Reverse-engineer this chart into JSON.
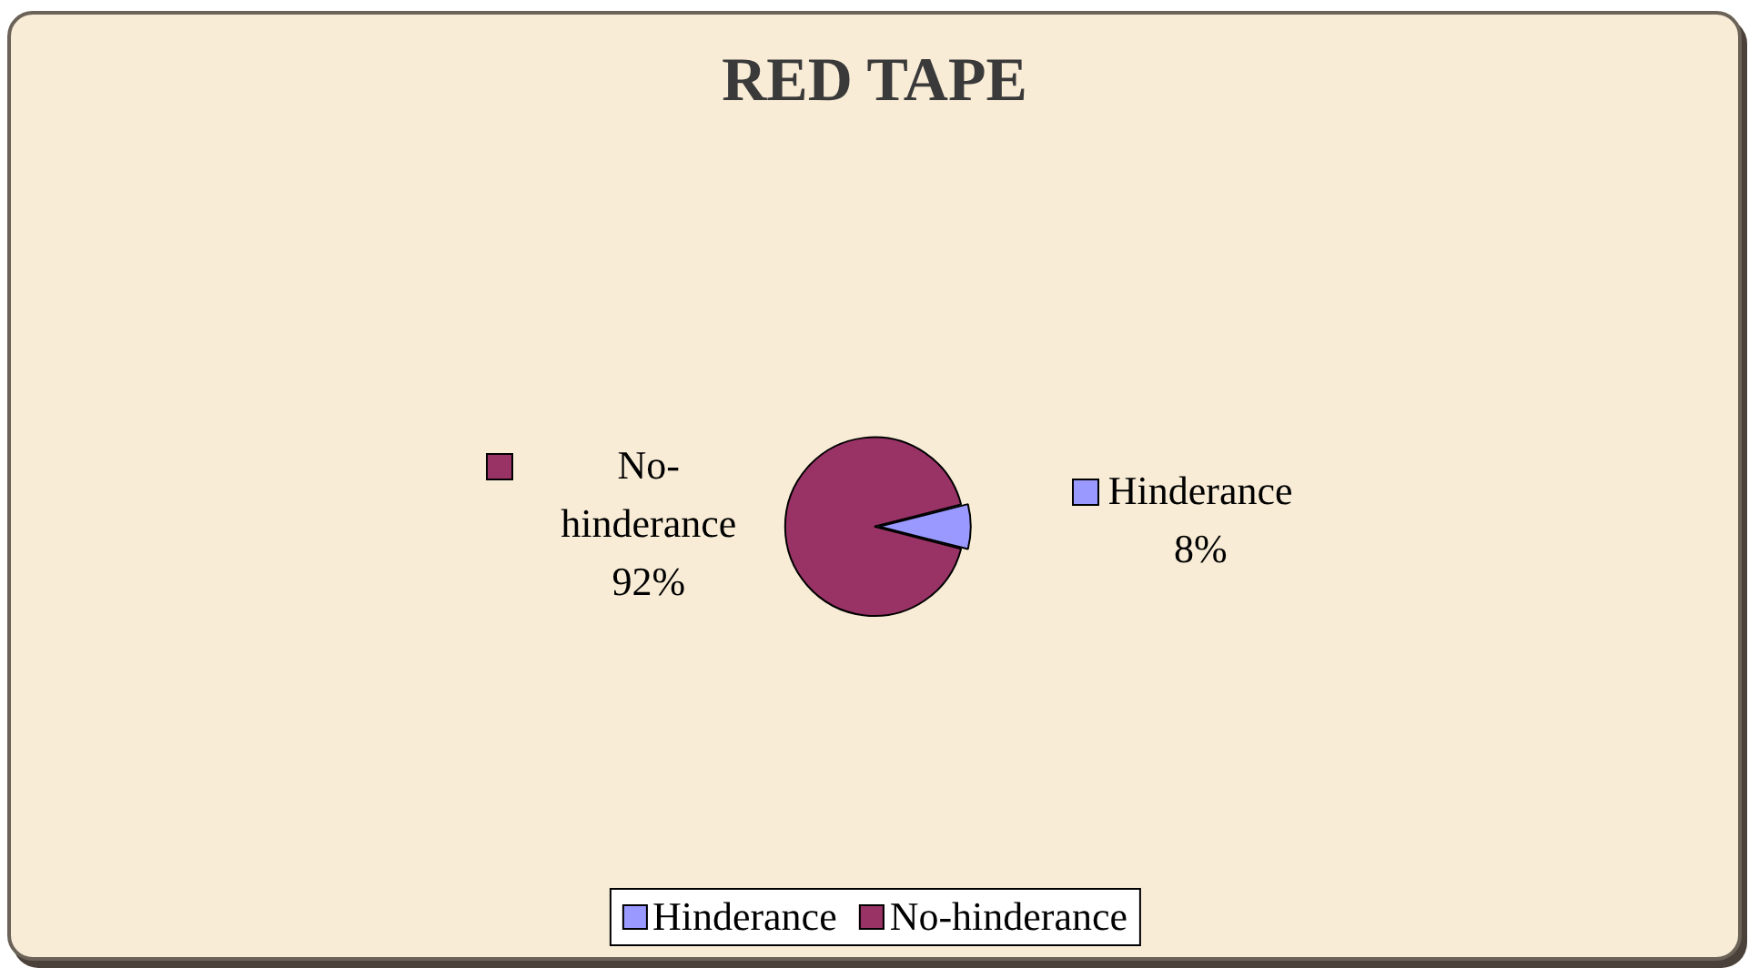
{
  "chart_data": {
    "type": "pie",
    "title": "RED TAPE",
    "categories": [
      "Hinderance",
      "No-hinderance"
    ],
    "values": [
      8,
      92
    ],
    "value_labels": [
      "8%",
      "92%"
    ],
    "colors": [
      "#9999ff",
      "#993366"
    ],
    "legend": "bottom"
  }
}
